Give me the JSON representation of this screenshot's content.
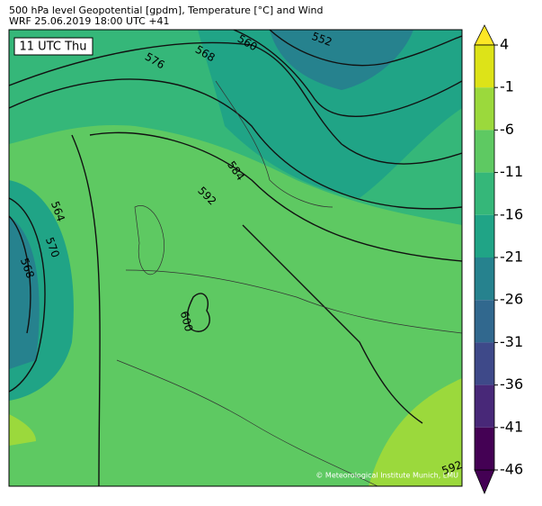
{
  "header": {
    "line1": "500 hPa level Geopotential [gpdm], Temperature [°C] and Wind",
    "line2": "WRF 25.06.2019 18:00 UTC +41"
  },
  "time_label": "11 UTC Thu",
  "contour_labels": [
    "560",
    "552",
    "568",
    "576",
    "584",
    "592",
    "564",
    "570",
    "568",
    "600",
    "592"
  ],
  "copyright": "© Meteorological Institute Munich, LMU",
  "colorbar": {
    "ticks": [
      4,
      -1,
      -6,
      -11,
      -16,
      -21,
      -26,
      -31,
      -36,
      -41,
      -46
    ],
    "colors": [
      "#dde318",
      "#9bd93c",
      "#5ec962",
      "#35b779",
      "#20a486",
      "#26828e",
      "#31688e",
      "#3e4989",
      "#482878",
      "#440154"
    ],
    "extend_colors": [
      "#fde725",
      "#440154"
    ]
  }
}
